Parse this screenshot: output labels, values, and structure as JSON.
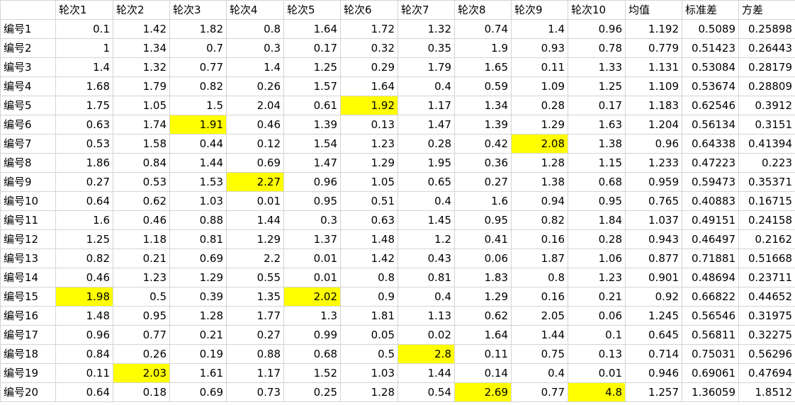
{
  "columns": [
    "",
    "轮次1",
    "轮次2",
    "轮次3",
    "轮次4",
    "轮次5",
    "轮次6",
    "轮次7",
    "轮次8",
    "轮次9",
    "轮次10",
    "均值",
    "标准差",
    "方差"
  ],
  "highlight_color": "#ffff00",
  "rows": [
    {
      "label": "编号1",
      "values": [
        "0.1",
        "1.42",
        "1.82",
        "0.8",
        "1.64",
        "1.72",
        "1.32",
        "0.74",
        "1.4",
        "0.96",
        "1.192",
        "0.5089",
        "0.25898"
      ],
      "highlight": []
    },
    {
      "label": "编号2",
      "values": [
        "1",
        "1.34",
        "0.7",
        "0.3",
        "0.17",
        "0.32",
        "0.35",
        "1.9",
        "0.93",
        "0.78",
        "0.779",
        "0.51423",
        "0.26443"
      ],
      "highlight": []
    },
    {
      "label": "编号3",
      "values": [
        "1.4",
        "1.32",
        "0.77",
        "1.4",
        "1.25",
        "0.29",
        "1.79",
        "1.65",
        "0.11",
        "1.33",
        "1.131",
        "0.53084",
        "0.28179"
      ],
      "highlight": []
    },
    {
      "label": "编号4",
      "values": [
        "1.68",
        "1.79",
        "0.82",
        "0.26",
        "1.57",
        "1.64",
        "0.4",
        "0.59",
        "1.09",
        "1.25",
        "1.109",
        "0.53674",
        "0.28809"
      ],
      "highlight": []
    },
    {
      "label": "编号5",
      "values": [
        "1.75",
        "1.05",
        "1.5",
        "2.04",
        "0.61",
        "1.92",
        "1.17",
        "1.34",
        "0.28",
        "0.17",
        "1.183",
        "0.62546",
        "0.3912"
      ],
      "highlight": [
        5
      ]
    },
    {
      "label": "编号6",
      "values": [
        "0.63",
        "1.74",
        "1.91",
        "0.46",
        "1.39",
        "0.13",
        "1.47",
        "1.39",
        "1.29",
        "1.63",
        "1.204",
        "0.56134",
        "0.3151"
      ],
      "highlight": [
        2
      ]
    },
    {
      "label": "编号7",
      "values": [
        "0.53",
        "1.58",
        "0.44",
        "0.12",
        "1.54",
        "1.23",
        "0.28",
        "0.42",
        "2.08",
        "1.38",
        "0.96",
        "0.64338",
        "0.41394"
      ],
      "highlight": [
        8
      ]
    },
    {
      "label": "编号8",
      "values": [
        "1.86",
        "0.84",
        "1.44",
        "0.69",
        "1.47",
        "1.29",
        "1.95",
        "0.36",
        "1.28",
        "1.15",
        "1.233",
        "0.47223",
        "0.223"
      ],
      "highlight": []
    },
    {
      "label": "编号9",
      "values": [
        "0.27",
        "0.53",
        "1.53",
        "2.27",
        "0.96",
        "1.05",
        "0.65",
        "0.27",
        "1.38",
        "0.68",
        "0.959",
        "0.59473",
        "0.35371"
      ],
      "highlight": [
        3
      ]
    },
    {
      "label": "编号10",
      "values": [
        "0.64",
        "0.62",
        "1.03",
        "0.01",
        "0.95",
        "0.51",
        "0.4",
        "1.6",
        "0.94",
        "0.95",
        "0.765",
        "0.40883",
        "0.16715"
      ],
      "highlight": []
    },
    {
      "label": "编号11",
      "values": [
        "1.6",
        "0.46",
        "0.88",
        "1.44",
        "0.3",
        "0.63",
        "1.45",
        "0.95",
        "0.82",
        "1.84",
        "1.037",
        "0.49151",
        "0.24158"
      ],
      "highlight": []
    },
    {
      "label": "编号12",
      "values": [
        "1.25",
        "1.18",
        "0.81",
        "1.29",
        "1.37",
        "1.48",
        "1.2",
        "0.41",
        "0.16",
        "0.28",
        "0.943",
        "0.46497",
        "0.2162"
      ],
      "highlight": []
    },
    {
      "label": "编号13",
      "values": [
        "0.82",
        "0.21",
        "0.69",
        "2.2",
        "0.01",
        "1.42",
        "0.43",
        "0.06",
        "1.87",
        "1.06",
        "0.877",
        "0.71881",
        "0.51668"
      ],
      "highlight": []
    },
    {
      "label": "编号14",
      "values": [
        "0.46",
        "1.23",
        "1.29",
        "0.55",
        "0.01",
        "0.8",
        "0.81",
        "1.83",
        "0.8",
        "1.23",
        "0.901",
        "0.48694",
        "0.23711"
      ],
      "highlight": []
    },
    {
      "label": "编号15",
      "values": [
        "1.98",
        "0.5",
        "0.39",
        "1.35",
        "2.02",
        "0.9",
        "0.4",
        "1.29",
        "0.16",
        "0.21",
        "0.92",
        "0.66822",
        "0.44652"
      ],
      "highlight": [
        0,
        4
      ]
    },
    {
      "label": "编号16",
      "values": [
        "1.48",
        "0.95",
        "1.28",
        "1.77",
        "1.3",
        "1.81",
        "1.13",
        "0.62",
        "2.05",
        "0.06",
        "1.245",
        "0.56546",
        "0.31975"
      ],
      "highlight": []
    },
    {
      "label": "编号17",
      "values": [
        "0.96",
        "0.77",
        "0.21",
        "0.27",
        "0.99",
        "0.05",
        "0.02",
        "1.64",
        "1.44",
        "0.1",
        "0.645",
        "0.56811",
        "0.32275"
      ],
      "highlight": []
    },
    {
      "label": "编号18",
      "values": [
        "0.84",
        "0.26",
        "0.19",
        "0.88",
        "0.68",
        "0.5",
        "2.8",
        "0.11",
        "0.75",
        "0.13",
        "0.714",
        "0.75031",
        "0.56296"
      ],
      "highlight": [
        6
      ]
    },
    {
      "label": "编号19",
      "values": [
        "0.11",
        "2.03",
        "1.61",
        "1.17",
        "1.52",
        "1.03",
        "1.44",
        "0.14",
        "0.4",
        "0.01",
        "0.946",
        "0.69061",
        "0.47694"
      ],
      "highlight": [
        1
      ]
    },
    {
      "label": "编号20",
      "values": [
        "0.64",
        "0.18",
        "0.69",
        "0.73",
        "0.25",
        "1.28",
        "0.54",
        "2.69",
        "0.77",
        "4.8",
        "1.257",
        "1.36059",
        "1.8512"
      ],
      "highlight": [
        7,
        9
      ]
    }
  ]
}
